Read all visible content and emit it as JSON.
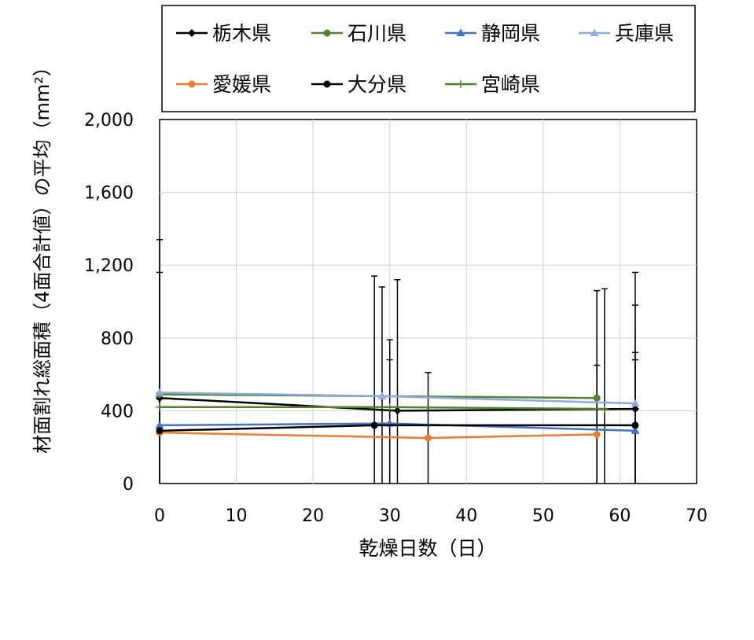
{
  "chart_data": {
    "type": "line",
    "xlabel": "乾燥日数（日）",
    "ylabel": "材面割れ総面積（4面合計値）の平均（mm²）",
    "xlim": [
      0,
      70
    ],
    "ylim": [
      0,
      2000
    ],
    "x_ticks": [
      0,
      10,
      20,
      30,
      40,
      50,
      60,
      70
    ],
    "y_ticks": [
      0,
      400,
      800,
      1200,
      1600,
      2000
    ],
    "x_tick_labels": [
      "0",
      "10",
      "20",
      "30",
      "40",
      "50",
      "60",
      "70"
    ],
    "y_tick_labels": [
      "0",
      "400",
      "800",
      "1,200",
      "1,600",
      "2,000"
    ],
    "grid": true,
    "legend_position": "top",
    "series": [
      {
        "name": "栃木県",
        "color": "#000000",
        "marker": "diamond",
        "points": [
          [
            0,
            470
          ],
          [
            31,
            400
          ],
          [
            62,
            410
          ]
        ],
        "error_bars": [
          [
            0,
            0,
            0
          ],
          [
            31,
            0,
            1120
          ],
          [
            62,
            0,
            1160
          ]
        ]
      },
      {
        "name": "石川県",
        "color": "#548235",
        "marker": "circle",
        "points": [
          [
            0,
            490
          ],
          [
            57,
            470
          ]
        ],
        "error_bars": [
          [
            0,
            0,
            0
          ],
          [
            57,
            0,
            1060
          ]
        ]
      },
      {
        "name": "静岡県",
        "color": "#4472c4",
        "marker": "triangle",
        "points": [
          [
            0,
            320
          ],
          [
            30,
            330
          ],
          [
            62,
            290
          ]
        ],
        "error_bars": [
          [
            0,
            0,
            0
          ],
          [
            30,
            0,
            790
          ],
          [
            62,
            0,
            720
          ]
        ]
      },
      {
        "name": "兵庫県",
        "color": "#8faadc",
        "marker": "triangle",
        "points": [
          [
            0,
            500
          ],
          [
            29,
            480
          ],
          [
            62,
            440
          ]
        ],
        "error_bars": [
          [
            0,
            0,
            0
          ],
          [
            29,
            0,
            1080
          ],
          [
            62,
            0,
            980
          ]
        ]
      },
      {
        "name": "愛媛県",
        "color": "#ed7d31",
        "marker": "circle",
        "points": [
          [
            0,
            280
          ],
          [
            35,
            250
          ],
          [
            57,
            270
          ]
        ],
        "error_bars": [
          [
            0,
            0,
            0
          ],
          [
            35,
            0,
            610
          ],
          [
            57,
            0,
            650
          ]
        ]
      },
      {
        "name": "大分県",
        "color": "#000000",
        "marker": "circle",
        "points": [
          [
            0,
            290
          ],
          [
            28,
            320
          ],
          [
            62,
            320
          ]
        ],
        "error_bars": [
          [
            0,
            0,
            1340
          ],
          [
            28,
            0,
            1140
          ],
          [
            62,
            0,
            680
          ]
        ]
      },
      {
        "name": "宮崎県",
        "color": "#548235",
        "marker": "plus",
        "points": [
          [
            0,
            420
          ],
          [
            30,
            420
          ],
          [
            58,
            410
          ]
        ],
        "error_bars": [
          [
            0,
            0,
            1160
          ],
          [
            30,
            0,
            680
          ],
          [
            58,
            0,
            1070
          ]
        ]
      }
    ]
  }
}
